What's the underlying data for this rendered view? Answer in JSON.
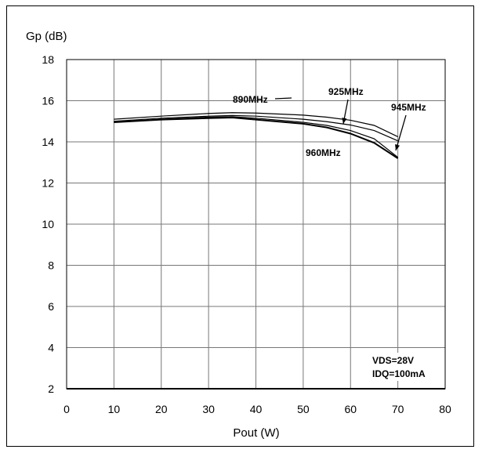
{
  "chart_data": {
    "type": "line",
    "title": "",
    "xlabel": "Pout (W)",
    "ylabel": "Gp (dB)",
    "xlim": [
      0,
      80
    ],
    "ylim": [
      2,
      18
    ],
    "xticks": [
      0,
      10,
      20,
      30,
      40,
      50,
      60,
      70,
      80
    ],
    "yticks": [
      2,
      4,
      6,
      8,
      10,
      12,
      14,
      16,
      18
    ],
    "grid": true,
    "series": [
      {
        "name": "890MHz",
        "x": [
          10,
          20,
          30,
          35,
          40,
          50,
          55,
          60,
          65,
          70
        ],
        "y": [
          15.1,
          15.25,
          15.38,
          15.42,
          15.4,
          15.3,
          15.2,
          15.05,
          14.8,
          14.25
        ]
      },
      {
        "name": "925MHz",
        "x": [
          10,
          20,
          30,
          35,
          40,
          50,
          55,
          60,
          65,
          70
        ],
        "y": [
          15.0,
          15.15,
          15.25,
          15.28,
          15.25,
          15.1,
          14.98,
          14.82,
          14.55,
          14.05
        ]
      },
      {
        "name": "945MHz",
        "x": [
          10,
          20,
          30,
          35,
          40,
          50,
          55,
          60,
          65,
          70
        ],
        "y": [
          14.95,
          15.1,
          15.2,
          15.22,
          15.15,
          14.95,
          14.8,
          14.55,
          14.15,
          13.25
        ]
      },
      {
        "name": "960MHz",
        "x": [
          10,
          20,
          30,
          35,
          40,
          50,
          55,
          60,
          65,
          70
        ],
        "y": [
          14.95,
          15.08,
          15.15,
          15.18,
          15.08,
          14.88,
          14.7,
          14.4,
          13.95,
          13.2
        ]
      }
    ],
    "annotations": {
      "conditions": [
        "VDS=28V",
        "IDQ=100mA"
      ]
    }
  }
}
